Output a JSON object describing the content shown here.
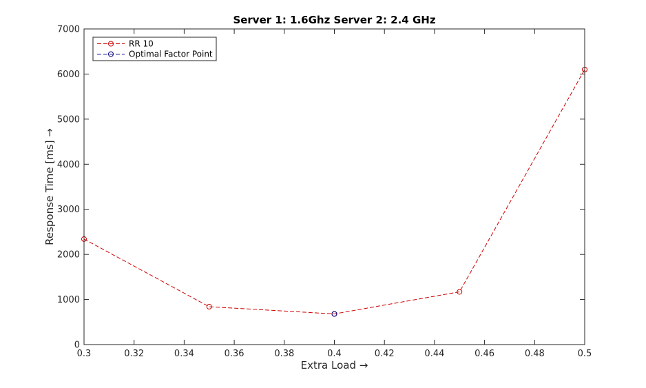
{
  "chart_data": {
    "type": "line",
    "title": "Server 1: 1.6Ghz Server 2: 2.4 GHz",
    "xlabel": "Extra Load →",
    "ylabel": "Response Time [ms] →",
    "xlim": [
      0.3,
      0.5
    ],
    "ylim": [
      0,
      7000
    ],
    "xticks": [
      "0.3",
      "0.32",
      "0.34",
      "0.36",
      "0.38",
      "0.4",
      "0.42",
      "0.44",
      "0.46",
      "0.48",
      "0.5"
    ],
    "yticks": [
      "0",
      "1000",
      "2000",
      "3000",
      "4000",
      "5000",
      "6000",
      "7000"
    ],
    "grid": false,
    "legend_position": "top-left",
    "series": [
      {
        "name": "RR 10",
        "color": "#cc0000",
        "line_style": "dashed",
        "marker": "circle",
        "x": [
          0.3,
          0.35,
          0.4,
          0.45,
          0.5
        ],
        "y": [
          2340,
          840,
          680,
          1170,
          6100
        ]
      },
      {
        "name": "Optimal Factor Point",
        "color": "#00007f",
        "line_style": "dashed",
        "marker": "circle",
        "x": [
          0.4
        ],
        "y": [
          680
        ]
      }
    ]
  }
}
